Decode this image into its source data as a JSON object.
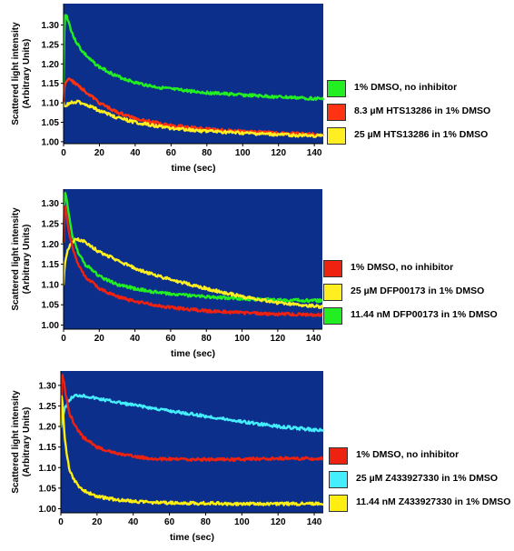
{
  "chart_data": [
    {
      "type": "line",
      "xlabel": "time (sec)",
      "ylabel": [
        "Scattered light intensity",
        "(Arbitrary Units)"
      ],
      "xlim": [
        0,
        145
      ],
      "ylim": [
        0.995,
        1.355
      ],
      "xticks": [
        0,
        20,
        40,
        60,
        80,
        100,
        120,
        140
      ],
      "yticks": [
        1.0,
        1.05,
        1.1,
        1.15,
        1.2,
        1.25,
        1.3
      ],
      "ytick_labels": [
        "1.00",
        "1.05",
        "1.10",
        "1.15",
        "1.20",
        "1.25",
        "1.30"
      ],
      "series": [
        {
          "name": "1% DMSO, no inhibitor",
          "color": "#22ee22",
          "x": [
            0,
            0.5,
            1,
            2,
            4,
            6,
            10,
            15,
            20,
            30,
            40,
            50,
            60,
            80,
            100,
            120,
            145
          ],
          "y": [
            1.15,
            1.3,
            1.33,
            1.32,
            1.29,
            1.265,
            1.235,
            1.21,
            1.192,
            1.168,
            1.152,
            1.142,
            1.135,
            1.126,
            1.12,
            1.115,
            1.11
          ]
        },
        {
          "name": "8.3 µM HTS13286 in 1% DMSO",
          "color": "#ff3311",
          "x": [
            0,
            0.5,
            1,
            2,
            3,
            5,
            8,
            12,
            20,
            30,
            40,
            50,
            60,
            80,
            100,
            120,
            145
          ],
          "y": [
            1.1,
            1.14,
            1.15,
            1.158,
            1.16,
            1.155,
            1.145,
            1.13,
            1.1,
            1.075,
            1.06,
            1.05,
            1.042,
            1.032,
            1.026,
            1.022,
            1.018
          ]
        },
        {
          "name": "25 µM HTS13286 in 1% DMSO",
          "color": "#ffee22",
          "x": [
            0,
            0.5,
            1,
            2,
            4,
            6,
            8,
            12,
            20,
            30,
            40,
            50,
            60,
            80,
            100,
            120,
            145
          ],
          "y": [
            1.1,
            1.09,
            1.092,
            1.095,
            1.1,
            1.103,
            1.102,
            1.097,
            1.08,
            1.062,
            1.05,
            1.042,
            1.035,
            1.027,
            1.022,
            1.018,
            1.015
          ]
        }
      ]
    },
    {
      "type": "line",
      "xlabel": "time (sec)",
      "ylabel": [
        "Scattered light intensity",
        "(Arbitrary Units)"
      ],
      "xlim": [
        0,
        145
      ],
      "ylim": [
        0.99,
        1.335
      ],
      "xticks": [
        0,
        20,
        40,
        60,
        80,
        100,
        120,
        140
      ],
      "yticks": [
        1.0,
        1.05,
        1.1,
        1.15,
        1.2,
        1.25,
        1.3
      ],
      "ytick_labels": [
        "1.00",
        "1.05",
        "1.10",
        "1.15",
        "1.20",
        "1.25",
        "1.30"
      ],
      "series": [
        {
          "name": "11.44 nM DFP00173 in 1% DMSO",
          "color": "#22ee22",
          "x": [
            0,
            0.5,
            1,
            2,
            3,
            5,
            8,
            12,
            20,
            30,
            40,
            50,
            60,
            80,
            100,
            120,
            145
          ],
          "y": [
            1.2,
            1.31,
            1.33,
            1.3,
            1.27,
            1.22,
            1.18,
            1.15,
            1.12,
            1.1,
            1.09,
            1.082,
            1.077,
            1.07,
            1.065,
            1.062,
            1.06
          ]
        },
        {
          "name": "25 µM DFP00173 in 1% DMSO",
          "color": "#ffee22",
          "x": [
            0,
            0.5,
            1,
            2,
            4,
            6,
            8,
            12,
            20,
            30,
            40,
            50,
            60,
            80,
            100,
            120,
            145
          ],
          "y": [
            1.1,
            1.14,
            1.16,
            1.18,
            1.2,
            1.21,
            1.212,
            1.205,
            1.18,
            1.16,
            1.14,
            1.125,
            1.112,
            1.09,
            1.07,
            1.055,
            1.045
          ]
        },
        {
          "name": "1% DMSO, no inhibitor",
          "color": "#ee2211",
          "x": [
            0,
            0.5,
            1,
            2,
            3,
            5,
            8,
            12,
            20,
            30,
            40,
            50,
            60,
            80,
            100,
            120,
            145
          ],
          "y": [
            1.2,
            1.3,
            1.29,
            1.26,
            1.23,
            1.19,
            1.15,
            1.12,
            1.09,
            1.07,
            1.058,
            1.05,
            1.043,
            1.035,
            1.03,
            1.027,
            1.025
          ]
        }
      ]
    },
    {
      "type": "line",
      "xlabel": "time (sec)",
      "ylabel": [
        "Scattered light intensity",
        "(Arbitrary Units)"
      ],
      "xlim": [
        0,
        145
      ],
      "ylim": [
        0.99,
        1.335
      ],
      "xticks": [
        0,
        20,
        40,
        60,
        80,
        100,
        120,
        140
      ],
      "yticks": [
        1.0,
        1.05,
        1.1,
        1.15,
        1.2,
        1.25,
        1.3
      ],
      "ytick_labels": [
        "1.00",
        "1.05",
        "1.10",
        "1.15",
        "1.20",
        "1.25",
        "1.30"
      ],
      "series": [
        {
          "name": "25 µM Z433927330 in 1% DMSO",
          "color": "#44eeff",
          "x": [
            0,
            0.5,
            1,
            2,
            4,
            6,
            8,
            10,
            14,
            20,
            30,
            40,
            60,
            80,
            100,
            120,
            145
          ],
          "y": [
            1.2,
            1.21,
            1.22,
            1.24,
            1.26,
            1.27,
            1.275,
            1.276,
            1.274,
            1.268,
            1.26,
            1.252,
            1.238,
            1.225,
            1.212,
            1.2,
            1.19
          ]
        },
        {
          "name": "1% DMSO, no inhibitor",
          "color": "#ee2211",
          "x": [
            0,
            0.5,
            1,
            2,
            3,
            5,
            8,
            12,
            20,
            30,
            40,
            50,
            60,
            80,
            100,
            120,
            145
          ],
          "y": [
            1.2,
            1.31,
            1.325,
            1.3,
            1.27,
            1.23,
            1.2,
            1.175,
            1.15,
            1.135,
            1.127,
            1.122,
            1.12,
            1.12,
            1.12,
            1.122,
            1.122
          ]
        },
        {
          "name": "11.44 nM Z433927330 in 1% DMSO",
          "color": "#ffee11",
          "x": [
            0,
            0.5,
            1,
            2,
            3,
            5,
            8,
            12,
            20,
            30,
            40,
            50,
            60,
            80,
            100,
            120,
            145
          ],
          "y": [
            1.2,
            1.28,
            1.25,
            1.18,
            1.14,
            1.09,
            1.065,
            1.045,
            1.03,
            1.022,
            1.018,
            1.015,
            1.014,
            1.013,
            1.012,
            1.012,
            1.012
          ]
        }
      ]
    }
  ],
  "legends": [
    [
      {
        "label": "1% DMSO, no inhibitor",
        "color": "#22ee22"
      },
      {
        "label": "8.3 µM HTS13286 in 1% DMSO",
        "color": "#ff3311"
      },
      {
        "label": "25 µM HTS13286 in 1% DMSO",
        "color": "#ffee22"
      }
    ],
    [
      {
        "label": "1% DMSO, no inhibitor",
        "color": "#ee2211"
      },
      {
        "label": "25 µM DFP00173 in 1% DMSO",
        "color": "#ffee22"
      },
      {
        "label": "11.44 nM DFP00173 in 1% DMSO",
        "color": "#22ee22"
      }
    ],
    [
      {
        "label": "1% DMSO, no inhibitor",
        "color": "#ee2211"
      },
      {
        "label": "25 µM Z433927330 in 1% DMSO",
        "color": "#44eeff"
      },
      {
        "label": "11.44 nM Z433927330 in 1% DMSO",
        "color": "#ffee11"
      }
    ]
  ],
  "colors": {
    "plot_background": "#0b2f8a"
  }
}
